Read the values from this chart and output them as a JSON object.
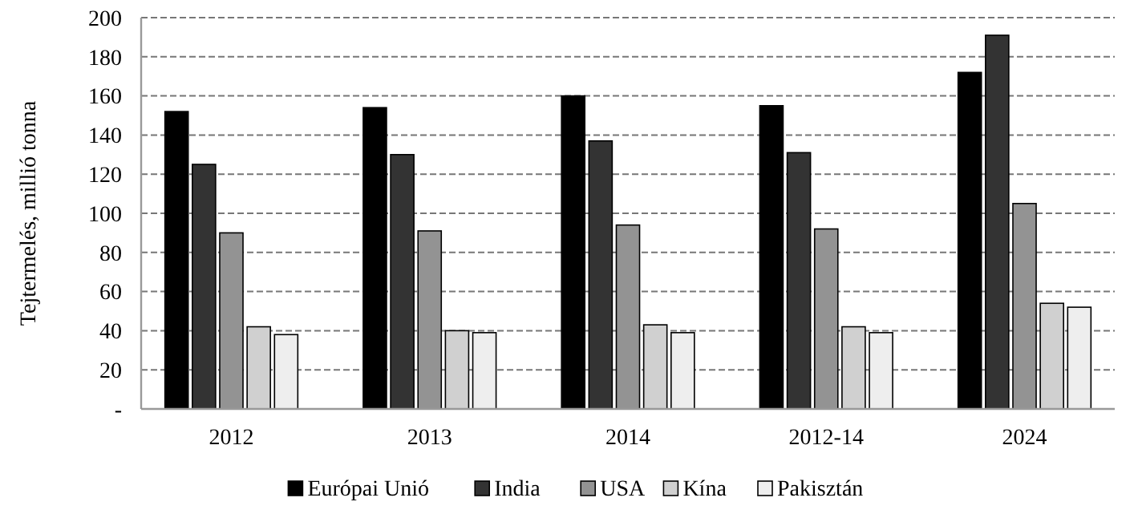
{
  "chart_data": {
    "type": "bar",
    "ylabel": "Tejtermelés, millió tonna",
    "categories": [
      "2012",
      "2013",
      "2014",
      "2012-14",
      "2024"
    ],
    "series": [
      {
        "name": "Európai Unió",
        "color": "#000000",
        "values": [
          152,
          154,
          160,
          155,
          172
        ]
      },
      {
        "name": "India",
        "color": "#333333",
        "values": [
          125,
          130,
          137,
          131,
          191
        ]
      },
      {
        "name": "USA",
        "color": "#939393",
        "values": [
          90,
          91,
          94,
          92,
          105
        ]
      },
      {
        "name": "Kína",
        "color": "#d0d0d0",
        "values": [
          42,
          40,
          43,
          42,
          54
        ]
      },
      {
        "name": "Pakisztán",
        "color": "#eeeeee",
        "values": [
          38,
          39,
          39,
          39,
          52
        ]
      }
    ],
    "ylim": [
      0,
      200
    ],
    "yticks": [
      {
        "value": 0,
        "label": "-"
      },
      20,
      40,
      60,
      80,
      100,
      120,
      140,
      160,
      180,
      200
    ],
    "grid": "y",
    "legend": "bottom"
  }
}
